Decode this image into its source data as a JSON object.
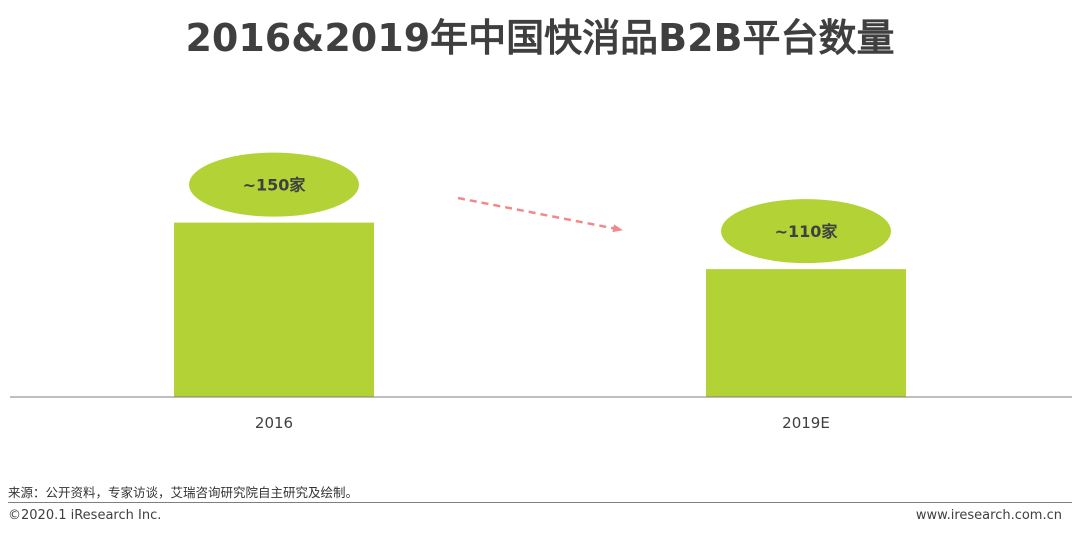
{
  "title": "2016&2019年中国快消品B2B平台数量",
  "chart_data": {
    "type": "bar",
    "categories": [
      "2016",
      "2019E"
    ],
    "values": [
      150,
      110
    ],
    "data_labels": [
      "~150家",
      "~110家"
    ],
    "unit": "家",
    "ylim": [
      0,
      160
    ],
    "grid": false,
    "bar_color": "#b2d235",
    "label_bubble_color": "#b2d235",
    "trend_arrow_color": "#f08a8a",
    "axis_color": "#7f7f7f"
  },
  "footer": {
    "source": "来源：公开资料，专家访谈，艾瑞咨询研究院自主研究及绘制。",
    "copyright": "©2020.1 iResearch Inc.",
    "website": "www.iresearch.com.cn"
  }
}
